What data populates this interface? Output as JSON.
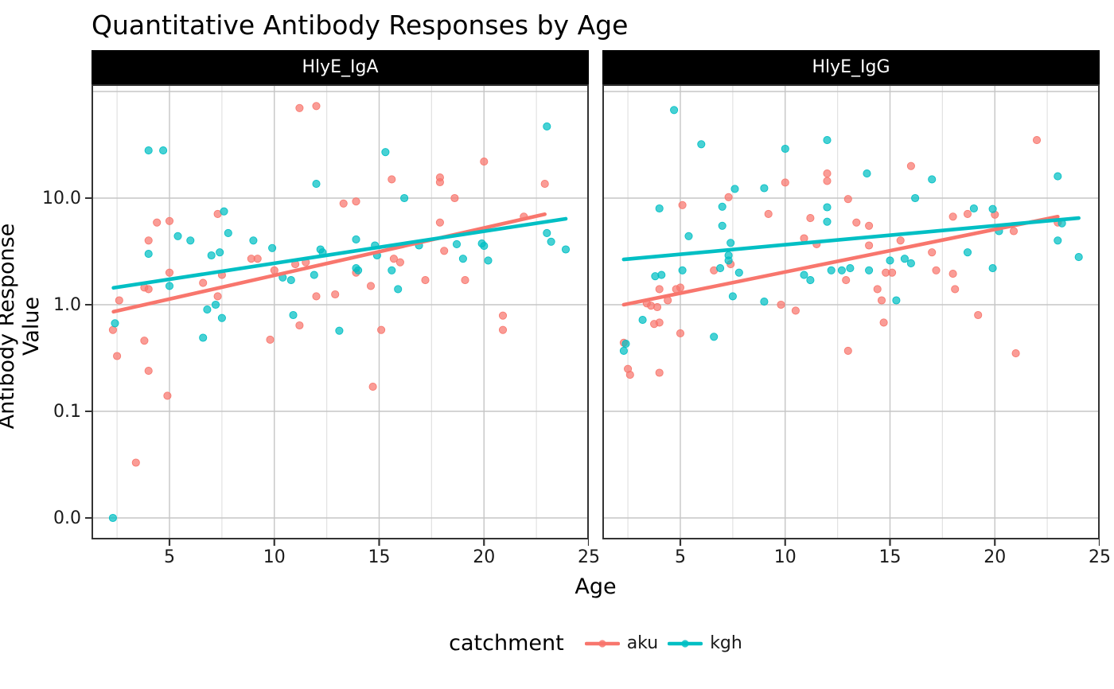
{
  "header": {
    "title": "Quantitative Antibody Responses by Age"
  },
  "colors": {
    "aku": "#F8766D",
    "kgh": "#00BFC4",
    "grid_major": "#C6C6C6",
    "grid_minor": "#E2E2E2",
    "panel_border": "#333333",
    "strip_bg": "#000000",
    "strip_text": "#FFFFFF"
  },
  "chart_data": {
    "type": "scatter",
    "title": "Quantitative Antibody Responses by Age",
    "xlabel": "Age",
    "ylabel": "Antibody Response Value",
    "x_ticks": [
      5,
      10,
      15,
      20,
      25
    ],
    "x_minor_ticks": [
      2.5,
      7.5,
      12.5,
      17.5,
      22.5
    ],
    "x_range": [
      1.3,
      25.1
    ],
    "y_tick_labels": [
      "10.0",
      "1.0",
      "0.1",
      "0.0"
    ],
    "y_tick_values": [
      10,
      1,
      0.1,
      0
    ],
    "y_scale": "pseudo-log10; 0 is drawn one decade below 0.1; horizontal gridlines at 0.0, 0.1, 1.0, 10.0, 100",
    "grid": true,
    "legend": {
      "title": "catchment",
      "position": "bottom",
      "items": [
        {
          "label": "aku",
          "color": "#F8766D"
        },
        {
          "label": "kgh",
          "color": "#00BFC4"
        }
      ]
    },
    "facets": [
      {
        "label": "HlyE_IgA",
        "series": [
          {
            "name": "aku",
            "color": "#F8766D",
            "points": [
              [
                11.2,
                70
              ],
              [
                12,
                73
              ],
              [
                13.3,
                8.9
              ],
              [
                7.3,
                7.1
              ],
              [
                4.4,
                5.9
              ],
              [
                5,
                6.1
              ],
              [
                4,
                4
              ],
              [
                8.9,
                2.7
              ],
              [
                9.2,
                2.7
              ],
              [
                11,
                2.4
              ],
              [
                11.5,
                2.5
              ],
              [
                10,
                2.1
              ],
              [
                5,
                2
              ],
              [
                7.5,
                1.9
              ],
              [
                6.6,
                1.6
              ],
              [
                3.8,
                1.45
              ],
              [
                4,
                1.4
              ],
              [
                2.6,
                1.1
              ],
              [
                12,
                1.2
              ],
              [
                12.9,
                1.25
              ],
              [
                7.3,
                1.2
              ],
              [
                2.3,
                0.58
              ],
              [
                3.8,
                0.46
              ],
              [
                2.5,
                0.33
              ],
              [
                4,
                0.24
              ],
              [
                4.9,
                0.14
              ],
              [
                9.8,
                0.47
              ],
              [
                11.2,
                0.64
              ],
              [
                3.4,
                0.033
              ],
              [
                20,
                22
              ],
              [
                15.6,
                15
              ],
              [
                17.9,
                15.6
              ],
              [
                17.9,
                14.1
              ],
              [
                22.9,
                13.6
              ],
              [
                18.6,
                10
              ],
              [
                13.9,
                9.3
              ],
              [
                21.9,
                6.7
              ],
              [
                17.9,
                5.9
              ],
              [
                18.1,
                3.2
              ],
              [
                16,
                2.5
              ],
              [
                15.7,
                2.7
              ],
              [
                13.9,
                2.0
              ],
              [
                14.6,
                1.5
              ],
              [
                17.2,
                1.7
              ],
              [
                19.1,
                1.7
              ],
              [
                15.1,
                0.58
              ],
              [
                14.7,
                0.17
              ],
              [
                20.9,
                0.79
              ],
              [
                20.9,
                0.58
              ]
            ]
          },
          {
            "name": "kgh",
            "color": "#00BFC4",
            "points": [
              [
                4,
                28
              ],
              [
                4.7,
                28
              ],
              [
                12,
                13.6
              ],
              [
                7.6,
                7.5
              ],
              [
                7.8,
                4.7
              ],
              [
                5.4,
                4.4
              ],
              [
                6,
                4
              ],
              [
                9,
                4
              ],
              [
                4,
                3
              ],
              [
                7,
                2.9
              ],
              [
                7.4,
                3.1
              ],
              [
                9.9,
                3.4
              ],
              [
                12.2,
                3.3
              ],
              [
                12.3,
                3.1
              ],
              [
                10.4,
                1.8
              ],
              [
                10.8,
                1.7
              ],
              [
                11.9,
                1.9
              ],
              [
                5,
                1.5
              ],
              [
                6.8,
                0.9
              ],
              [
                7.2,
                1.0
              ],
              [
                7.5,
                0.75
              ],
              [
                10.9,
                0.8
              ],
              [
                2.4,
                0.67
              ],
              [
                6.6,
                0.49
              ],
              [
                13.1,
                0.57
              ],
              [
                2.3,
                0
              ],
              [
                15.3,
                27
              ],
              [
                23,
                47
              ],
              [
                16.2,
                10
              ],
              [
                23,
                4.7
              ],
              [
                23.2,
                3.9
              ],
              [
                23.9,
                3.3
              ],
              [
                13.9,
                4.1
              ],
              [
                14.8,
                3.6
              ],
              [
                14.9,
                2.9
              ],
              [
                16.9,
                3.6
              ],
              [
                18.7,
                3.7
              ],
              [
                19.9,
                3.75
              ],
              [
                20,
                3.56
              ],
              [
                19,
                2.7
              ],
              [
                20.2,
                2.6
              ],
              [
                15.6,
                2.1
              ],
              [
                13.9,
                2.2
              ],
              [
                14,
                2.1
              ],
              [
                15.9,
                1.4
              ]
            ]
          }
        ],
        "trend_lines": [
          {
            "name": "aku",
            "color": "#F8766D",
            "from": [
              2.33,
              0.86
            ],
            "to": [
              22.9,
              7.06
            ]
          },
          {
            "name": "kgh",
            "color": "#00BFC4",
            "from": [
              2.33,
              1.44
            ],
            "to": [
              23.9,
              6.4
            ]
          }
        ]
      },
      {
        "label": "HlyE_IgG",
        "series": [
          {
            "name": "aku",
            "color": "#F8766D",
            "points": [
              [
                22,
                35
              ],
              [
                16,
                20
              ],
              [
                12,
                17
              ],
              [
                12,
                14.5
              ],
              [
                10,
                14
              ],
              [
                13,
                9.8
              ],
              [
                7.3,
                10.2
              ],
              [
                5.1,
                8.6
              ],
              [
                9.2,
                7.1
              ],
              [
                11.2,
                6.5
              ],
              [
                18.7,
                7.1
              ],
              [
                20,
                7.0
              ],
              [
                18,
                6.7
              ],
              [
                13.4,
                5.9
              ],
              [
                14,
                5.5
              ],
              [
                23,
                5.9
              ],
              [
                20.9,
                4.9
              ],
              [
                15.5,
                4
              ],
              [
                14,
                3.6
              ],
              [
                17,
                3.1
              ],
              [
                10.9,
                4.2
              ],
              [
                11.5,
                3.7
              ],
              [
                17.2,
                2.1
              ],
              [
                18,
                1.95
              ],
              [
                14.8,
                2.0
              ],
              [
                15.1,
                2.0
              ],
              [
                7.4,
                2.4
              ],
              [
                6.6,
                2.1
              ],
              [
                5,
                1.45
              ],
              [
                4.8,
                1.4
              ],
              [
                4,
                1.4
              ],
              [
                4.4,
                1.1
              ],
              [
                3.4,
                1.03
              ],
              [
                3.6,
                0.98
              ],
              [
                3.9,
                0.95
              ],
              [
                14.4,
                1.4
              ],
              [
                14.6,
                1.1
              ],
              [
                18.1,
                1.4
              ],
              [
                12.9,
                1.7
              ],
              [
                10.5,
                0.88
              ],
              [
                9.8,
                1.0
              ],
              [
                19.2,
                0.8
              ],
              [
                3.75,
                0.66
              ],
              [
                4,
                0.68
              ],
              [
                5,
                0.54
              ],
              [
                2.3,
                0.44
              ],
              [
                2.5,
                0.25
              ],
              [
                2.6,
                0.22
              ],
              [
                4,
                0.23
              ],
              [
                13,
                0.37
              ],
              [
                14.7,
                0.68
              ],
              [
                21,
                0.35
              ]
            ]
          },
          {
            "name": "kgh",
            "color": "#00BFC4",
            "points": [
              [
                4.7,
                67
              ],
              [
                6,
                32
              ],
              [
                10,
                29
              ],
              [
                12,
                35
              ],
              [
                7.6,
                12.2
              ],
              [
                9,
                12.4
              ],
              [
                4,
                8
              ],
              [
                7,
                8.3
              ],
              [
                12,
                8.2
              ],
              [
                12,
                6
              ],
              [
                7,
                5.5
              ],
              [
                5.4,
                4.4
              ],
              [
                7.4,
                3.8
              ],
              [
                7.3,
                2.9
              ],
              [
                7.3,
                2.6
              ],
              [
                6.9,
                2.2
              ],
              [
                7.8,
                2
              ],
              [
                3.8,
                1.85
              ],
              [
                4.1,
                1.9
              ],
              [
                5.1,
                2.1
              ],
              [
                12.7,
                2.1
              ],
              [
                12.2,
                2.1
              ],
              [
                10.9,
                1.9
              ],
              [
                11.2,
                1.7
              ],
              [
                9,
                1.07
              ],
              [
                7.5,
                1.2
              ],
              [
                13.9,
                17
              ],
              [
                17,
                15
              ],
              [
                23,
                16
              ],
              [
                16.2,
                10
              ],
              [
                19,
                8
              ],
              [
                19.9,
                7.9
              ],
              [
                23.2,
                5.8
              ],
              [
                20.2,
                4.9
              ],
              [
                15.7,
                2.7
              ],
              [
                16,
                2.45
              ],
              [
                15,
                2.6
              ],
              [
                18.7,
                3.1
              ],
              [
                13.1,
                2.2
              ],
              [
                14,
                2.1
              ],
              [
                19.9,
                2.2
              ],
              [
                23,
                4.0
              ],
              [
                24,
                2.8
              ],
              [
                15.3,
                1.1
              ],
              [
                3.2,
                0.72
              ],
              [
                6.6,
                0.5
              ],
              [
                2.4,
                0.43
              ],
              [
                2.3,
                0.37
              ]
            ]
          }
        ],
        "trend_lines": [
          {
            "name": "aku",
            "color": "#F8766D",
            "from": [
              2.3,
              1.0
            ],
            "to": [
              23.0,
              6.7
            ]
          },
          {
            "name": "kgh",
            "color": "#00BFC4",
            "from": [
              2.3,
              2.66
            ],
            "to": [
              24.0,
              6.5
            ]
          }
        ]
      }
    ]
  }
}
